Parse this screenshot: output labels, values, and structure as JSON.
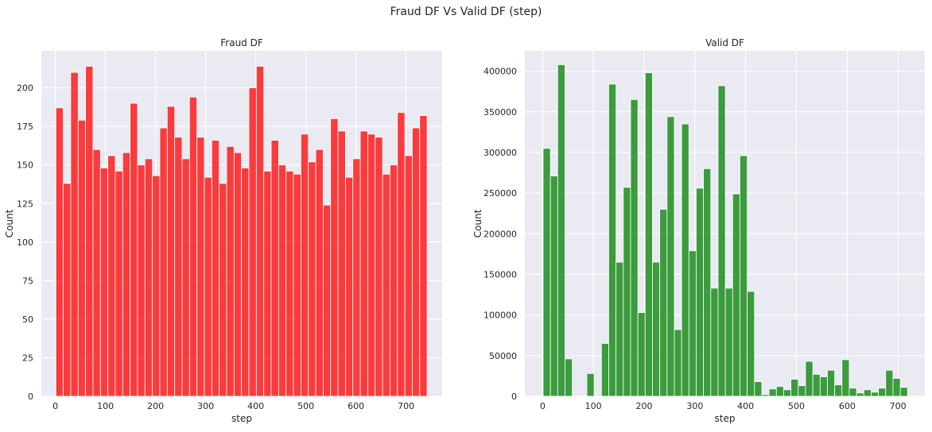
{
  "figure": {
    "title": "Fraud DF Vs Valid DF (step)"
  },
  "chart_data": [
    {
      "type": "bar",
      "title": "Fraud DF",
      "xlabel": "step",
      "ylabel": "Count",
      "color": "#ff0000",
      "bar_alpha": 0.75,
      "grid": true,
      "background": "#eaeaf2",
      "xlim": [
        -28,
        772
      ],
      "ylim": [
        0,
        224
      ],
      "xticks": [
        0,
        100,
        200,
        300,
        400,
        500,
        600,
        700
      ],
      "yticks": [
        0,
        25,
        50,
        75,
        100,
        125,
        150,
        175,
        200
      ],
      "bins": {
        "start": 1,
        "width": 14.82,
        "count": 50
      },
      "values": [
        187,
        138,
        210,
        179,
        214,
        160,
        148,
        156,
        146,
        158,
        190,
        150,
        154,
        143,
        174,
        188,
        168,
        154,
        194,
        168,
        142,
        166,
        138,
        162,
        158,
        148,
        200,
        214,
        146,
        166,
        150,
        146,
        144,
        170,
        152,
        160,
        124,
        180,
        172,
        142,
        154,
        172,
        170,
        168,
        144,
        150,
        184,
        156,
        174,
        182
      ]
    },
    {
      "type": "bar",
      "title": "Valid DF",
      "xlabel": "step",
      "ylabel": "Count",
      "color": "#008000",
      "bar_alpha": 0.75,
      "grid": true,
      "background": "#eaeaf2",
      "xlim": [
        -35,
        753
      ],
      "ylim": [
        0,
        425000
      ],
      "xticks": [
        0,
        100,
        200,
        300,
        400,
        500,
        600,
        700
      ],
      "yticks": [
        0,
        50000,
        100000,
        150000,
        200000,
        250000,
        300000,
        350000,
        400000
      ],
      "bins": {
        "start": 1,
        "width": 14.36,
        "count": 50
      },
      "values": [
        305000,
        271000,
        408000,
        46000,
        0,
        0,
        28000,
        0,
        65000,
        384000,
        165000,
        257000,
        365000,
        103000,
        398000,
        165000,
        230000,
        344000,
        82000,
        335000,
        179000,
        256000,
        280000,
        133000,
        382000,
        133000,
        249000,
        296000,
        129000,
        18000,
        2000,
        9000,
        12000,
        8000,
        21000,
        13000,
        43000,
        27000,
        24000,
        32000,
        14000,
        45000,
        10000,
        4000,
        8000,
        5000,
        10000,
        32000,
        22000,
        11000
      ]
    }
  ]
}
